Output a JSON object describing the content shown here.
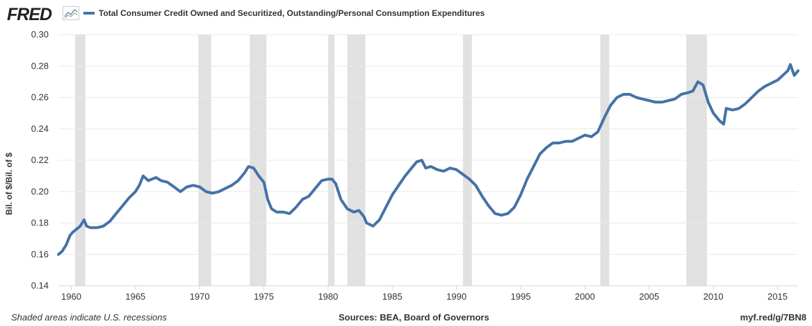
{
  "header": {
    "logo_text": "FRED",
    "logo_icon": "line-graph-icon"
  },
  "footer": {
    "left": "Shaded areas indicate U.S. recessions",
    "center": "Sources: BEA, Board of Governors",
    "right": "myf.red/g/7BN8"
  },
  "colors": {
    "series": "#4572a7",
    "recession": "#e1e1e1",
    "grid": "#e8e8e8"
  },
  "chart_data": {
    "type": "line",
    "title": "",
    "xlabel": "",
    "ylabel": "Bil. of $/Bil. of $",
    "xlim": [
      1959.0,
      2016.6
    ],
    "ylim": [
      0.14,
      0.3
    ],
    "x_ticks": [
      1960,
      1965,
      1970,
      1975,
      1980,
      1985,
      1990,
      1995,
      2000,
      2005,
      2010,
      2015
    ],
    "y_ticks": [
      "0.14",
      "0.16",
      "0.18",
      "0.20",
      "0.22",
      "0.24",
      "0.26",
      "0.28",
      "0.30"
    ],
    "grid": true,
    "legend_position": "top-left",
    "recessions": [
      [
        1960.3,
        1961.1
      ],
      [
        1969.9,
        1970.9
      ],
      [
        1973.9,
        1975.2
      ],
      [
        1980.0,
        1980.5
      ],
      [
        1981.5,
        1982.9
      ],
      [
        1990.5,
        1991.2
      ],
      [
        2001.2,
        2001.9
      ],
      [
        2007.9,
        2009.5
      ]
    ],
    "series": [
      {
        "name": "Total Consumer Credit Owned and Securitized, Outstanding/Personal Consumption Expenditures",
        "x": [
          1959.0,
          1959.3,
          1959.6,
          1959.9,
          1960.1,
          1960.4,
          1960.7,
          1961.0,
          1961.2,
          1961.5,
          1962.0,
          1962.5,
          1963.0,
          1963.5,
          1964.0,
          1964.5,
          1965.0,
          1965.3,
          1965.6,
          1966.0,
          1966.3,
          1966.6,
          1967.0,
          1967.5,
          1968.0,
          1968.5,
          1969.0,
          1969.5,
          1970.0,
          1970.5,
          1971.0,
          1971.5,
          1972.0,
          1972.5,
          1973.0,
          1973.5,
          1973.8,
          1974.2,
          1974.6,
          1975.0,
          1975.3,
          1975.6,
          1976.0,
          1976.5,
          1977.0,
          1977.5,
          1978.0,
          1978.5,
          1979.0,
          1979.5,
          1980.0,
          1980.3,
          1980.6,
          1981.0,
          1981.5,
          1982.0,
          1982.4,
          1982.8,
          1983.0,
          1983.5,
          1984.0,
          1984.5,
          1985.0,
          1985.5,
          1986.0,
          1986.5,
          1986.9,
          1987.3,
          1987.6,
          1988.0,
          1988.5,
          1989.0,
          1989.5,
          1990.0,
          1990.5,
          1991.0,
          1991.5,
          1992.0,
          1992.5,
          1993.0,
          1993.5,
          1994.0,
          1994.5,
          1995.0,
          1995.5,
          1996.0,
          1996.5,
          1997.0,
          1997.5,
          1998.0,
          1998.5,
          1999.0,
          1999.5,
          2000.0,
          2000.5,
          2001.0,
          2001.5,
          2002.0,
          2002.5,
          2003.0,
          2003.5,
          2004.0,
          2004.5,
          2005.0,
          2005.5,
          2006.0,
          2006.5,
          2007.0,
          2007.5,
          2008.0,
          2008.4,
          2008.8,
          2009.2,
          2009.6,
          2010.0,
          2010.5,
          2010.8,
          2011.0,
          2011.5,
          2012.0,
          2012.5,
          2013.0,
          2013.5,
          2014.0,
          2014.5,
          2015.0,
          2015.4,
          2015.8,
          2016.0,
          2016.3,
          2016.6
        ],
        "values": [
          0.16,
          0.162,
          0.166,
          0.172,
          0.174,
          0.176,
          0.178,
          0.182,
          0.178,
          0.177,
          0.177,
          0.178,
          0.181,
          0.186,
          0.191,
          0.196,
          0.2,
          0.204,
          0.21,
          0.207,
          0.208,
          0.209,
          0.207,
          0.206,
          0.203,
          0.2,
          0.203,
          0.204,
          0.203,
          0.2,
          0.199,
          0.2,
          0.202,
          0.204,
          0.207,
          0.212,
          0.216,
          0.215,
          0.21,
          0.206,
          0.195,
          0.189,
          0.187,
          0.187,
          0.186,
          0.19,
          0.195,
          0.197,
          0.202,
          0.207,
          0.208,
          0.208,
          0.205,
          0.195,
          0.189,
          0.187,
          0.188,
          0.184,
          0.18,
          0.178,
          0.182,
          0.19,
          0.198,
          0.204,
          0.21,
          0.215,
          0.219,
          0.22,
          0.215,
          0.216,
          0.214,
          0.213,
          0.215,
          0.214,
          0.211,
          0.208,
          0.204,
          0.197,
          0.191,
          0.186,
          0.185,
          0.186,
          0.19,
          0.198,
          0.208,
          0.216,
          0.224,
          0.228,
          0.231,
          0.231,
          0.232,
          0.232,
          0.234,
          0.236,
          0.235,
          0.238,
          0.247,
          0.255,
          0.26,
          0.262,
          0.262,
          0.26,
          0.259,
          0.258,
          0.257,
          0.257,
          0.258,
          0.259,
          0.262,
          0.263,
          0.264,
          0.27,
          0.268,
          0.257,
          0.25,
          0.245,
          0.243,
          0.253,
          0.252,
          0.253,
          0.256,
          0.26,
          0.264,
          0.267,
          0.269,
          0.271,
          0.274,
          0.277,
          0.281,
          0.274,
          0.277
        ]
      }
    ]
  }
}
